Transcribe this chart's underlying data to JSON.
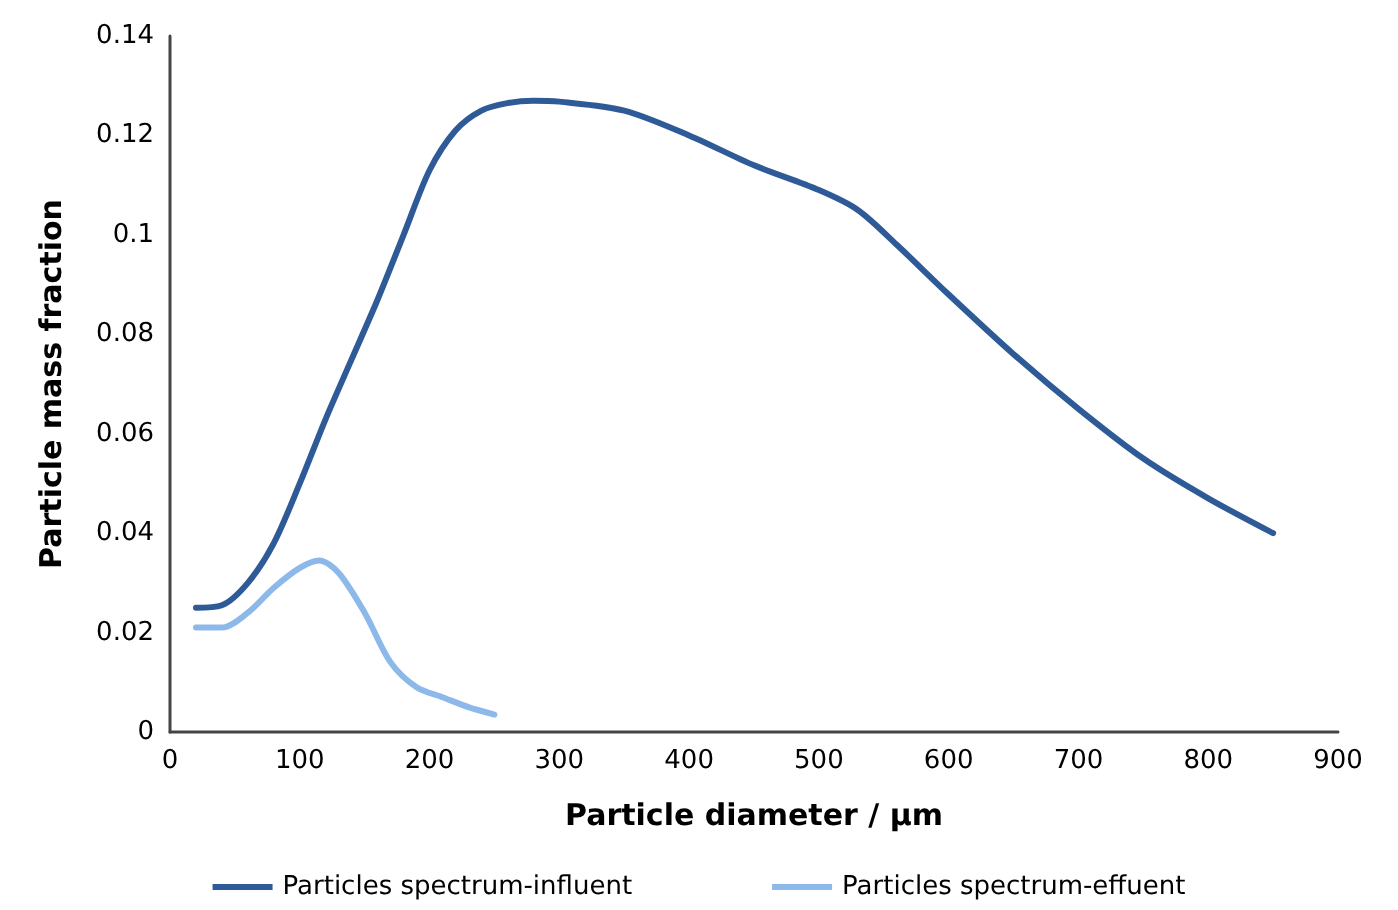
{
  "chart_data": {
    "type": "line",
    "xlabel": "Particle diameter / µm",
    "ylabel": "Particle mass fraction",
    "xlim": [
      0,
      900
    ],
    "xticks": [
      0,
      100,
      200,
      300,
      400,
      500,
      600,
      700,
      800,
      900
    ],
    "ylim": [
      0,
      0.14
    ],
    "yticks": [
      0,
      0.02,
      0.04,
      0.06,
      0.08,
      0.1,
      0.12,
      0.14
    ],
    "grid": false,
    "legend": "bottom",
    "marker": "none",
    "line_style": "solid",
    "series": [
      {
        "name": "Particles spectrum-influent",
        "color": "#2e5b97",
        "x": [
          20,
          40,
          60,
          80,
          100,
          120,
          140,
          160,
          180,
          200,
          220,
          240,
          260,
          280,
          300,
          350,
          400,
          450,
          500,
          530,
          560,
          600,
          650,
          700,
          750,
          800,
          850
        ],
        "values": [
          0.025,
          0.0255,
          0.03,
          0.038,
          0.05,
          0.063,
          0.075,
          0.087,
          0.1,
          0.113,
          0.121,
          0.125,
          0.1265,
          0.127,
          0.1268,
          0.125,
          0.12,
          0.114,
          0.109,
          0.105,
          0.098,
          0.088,
          0.076,
          0.065,
          0.055,
          0.047,
          0.04
        ]
      },
      {
        "name": "Particles spectrum-effuent",
        "color": "#8db8ea",
        "x": [
          20,
          40,
          60,
          80,
          100,
          115,
          130,
          150,
          170,
          190,
          210,
          230,
          250
        ],
        "values": [
          0.021,
          0.021,
          0.024,
          0.029,
          0.033,
          0.0345,
          0.032,
          0.024,
          0.014,
          0.009,
          0.007,
          0.005,
          0.0035
        ]
      }
    ]
  }
}
